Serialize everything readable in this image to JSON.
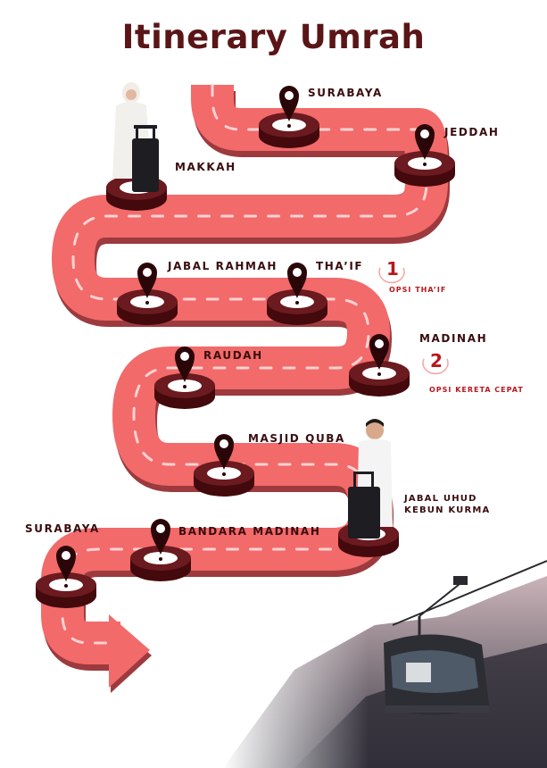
{
  "title": "Itinerary Umrah",
  "colors": {
    "road": "#f26a6a",
    "road_shadow": "#9c3a3e",
    "dash": "#ffd2d2",
    "marker": "#6b1a1f",
    "marker_dark": "#43090d",
    "title": "#5a1517",
    "accent": "#b8171b"
  },
  "stops": [
    {
      "label": "SURABAYA"
    },
    {
      "label": "JEDDAH"
    },
    {
      "label": "MAKKAH"
    },
    {
      "label": "JABAL RAHMAH"
    },
    {
      "label": "THA’IF"
    },
    {
      "label": "MADINAH"
    },
    {
      "label": "RAUDAH"
    },
    {
      "label": "MASJID QUBA"
    },
    {
      "label": "JABAL UHUD"
    },
    {
      "label": "KEBUN KURMA"
    },
    {
      "label": "BANDARA MADINAH"
    },
    {
      "label": "SURABAYA"
    }
  ],
  "options": [
    {
      "number": "1",
      "label": "OPSI THA’IF"
    },
    {
      "number": "2",
      "label": "OPSI KERETA CEPAT"
    }
  ],
  "icons": [
    "location-pin-icon",
    "road-arrow-icon",
    "pilgrim-woman-figure",
    "pilgrim-man-figure",
    "cable-car-figure"
  ]
}
